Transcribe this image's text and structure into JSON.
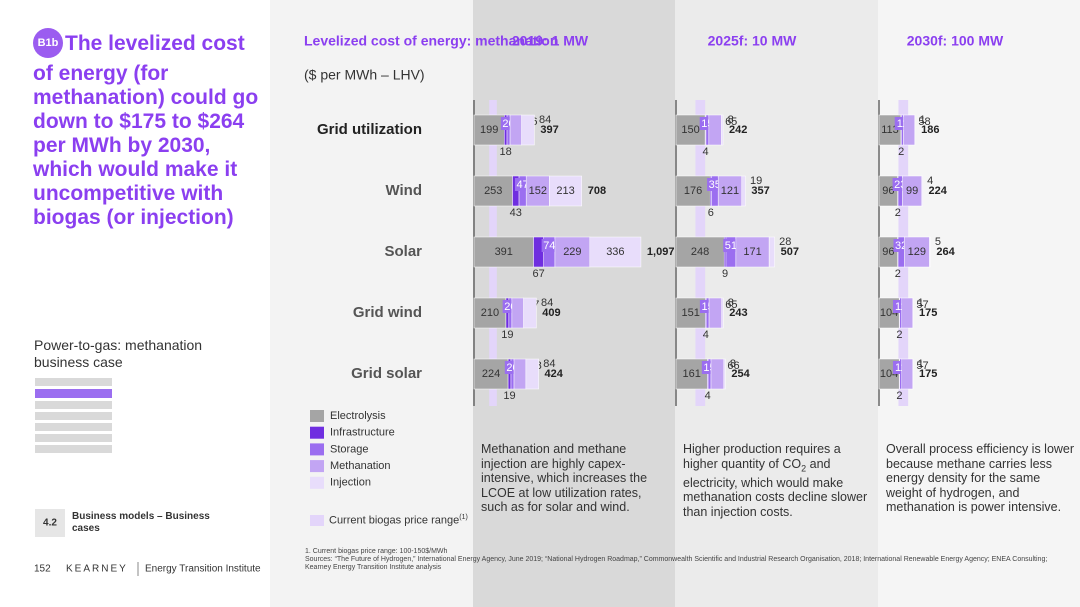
{
  "slide": {
    "badge": "B1b",
    "title": "The levelized cost of energy (for methanation) could go down to $175 to $264 per MWh by 2030, which would make it uncompetitive with biogas (or injection)",
    "subtitle": "Power-to-gas: methanation business case",
    "section_number": "4.2",
    "section_name": "Business models – Business cases",
    "page_number": "152",
    "brand": "KEARNEY",
    "brand_unit": "Energy Transition Institute",
    "footnote": "1. Current biogas price range: 100-150$/MWh",
    "sources": "Sources: “The Future of Hydrogen,” International Energy Agency, June 2019; “National Hydrogen Roadmap,” Commonwealth Scientific and Industrial Research Organisation, 2018; International Renewable Energy Agency; ENEA Consulting; Kearney Energy Transition Institute analysis"
  },
  "chart_header": {
    "title": "Levelized cost of energy: methanation",
    "unit": "($ per MWh – LHV)"
  },
  "biogas_legend": {
    "label": "Current biogas price range",
    "note_mark": "(1)",
    "color": "#e3d5fa"
  },
  "comments": [
    {
      "parts": [
        "Methanation and methane injection are highly capex-intensive, which increases the LCOE at low utilization rates, such as for solar and wind."
      ]
    },
    {
      "parts": [
        "Higher production requires a higher quantity of CO",
        "2",
        " and electricity, which would make methanation costs decline slower than injection costs."
      ]
    },
    {
      "parts": [
        "Overall process efficiency is lower because methane carries less energy density for the same weight of hydrogen, and methanation is power intensive."
      ]
    }
  ],
  "chart_data": [
    {
      "type": "bar",
      "orientation": "horizontal",
      "stacked": true,
      "title": "2019: 1 MW",
      "categories": [
        "Grid utilization",
        "Wind",
        "Solar",
        "Grid wind",
        "Grid solar"
      ],
      "xlim": [
        0,
        1150
      ],
      "biogas_range": [
        100,
        150
      ],
      "series": [
        {
          "name": "Electrolysis",
          "color": "#a5a5a5",
          "values": [
            199,
            253,
            391,
            210,
            224
          ]
        },
        {
          "name": "Infrastructure",
          "color": "#6f2ee0",
          "values": [
            18,
            43,
            67,
            19,
            19
          ]
        },
        {
          "name": "Storage",
          "color": "#9b6ef0",
          "values": [
            20,
            47,
            74,
            20,
            20
          ]
        },
        {
          "name": "Methanation",
          "color": "#c2a5f3",
          "values": [
            76,
            152,
            229,
            77,
            78
          ]
        },
        {
          "name": "Injection",
          "color": "#e8ddfb",
          "values": [
            84,
            213,
            336,
            84,
            84
          ]
        }
      ],
      "totals": [
        397,
        708,
        {
          "value": 1097,
          "label": "1,097"
        },
        409,
        424
      ]
    },
    {
      "type": "bar",
      "orientation": "horizontal",
      "stacked": true,
      "title": "2025f: 10 MW",
      "xlim": [
        0,
        900
      ],
      "biogas_range": [
        100,
        150
      ],
      "series": [
        {
          "values": [
            150,
            176,
            248,
            151,
            161
          ]
        },
        {
          "values": [
            4,
            6,
            9,
            4,
            4
          ]
        },
        {
          "values": [
            15,
            35,
            51,
            15,
            15
          ]
        },
        {
          "values": [
            65,
            121,
            171,
            65,
            66
          ]
        },
        {
          "values": [
            8,
            19,
            28,
            8,
            8
          ]
        }
      ],
      "totals": [
        242,
        357,
        507,
        243,
        254
      ]
    },
    {
      "type": "bar",
      "orientation": "horizontal",
      "stacked": true,
      "title": "2030f: 100 MW",
      "xlim": [
        0,
        900
      ],
      "biogas_range": [
        100,
        150
      ],
      "series": [
        {
          "values": [
            113,
            96,
            96,
            104,
            104
          ]
        },
        {
          "values": [
            2,
            2,
            2,
            2,
            2
          ]
        },
        {
          "values": [
            11,
            23,
            32,
            11,
            11
          ]
        },
        {
          "values": [
            58,
            99,
            129,
            57,
            57
          ]
        },
        {
          "values": [
            1,
            4,
            5,
            1,
            1
          ]
        }
      ],
      "totals": [
        186,
        224,
        264,
        175,
        175
      ]
    }
  ]
}
